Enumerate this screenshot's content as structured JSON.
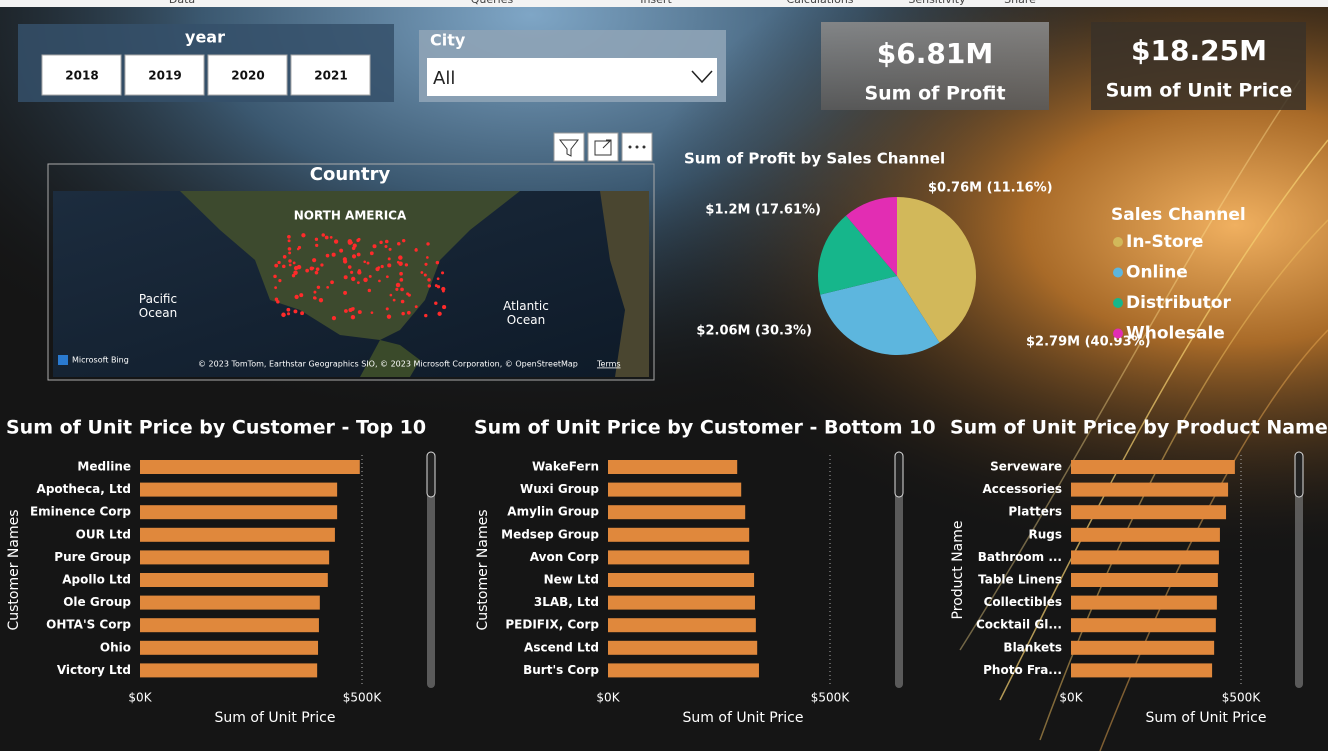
{
  "ribbon": {
    "tabs": [
      "Data",
      "Queries",
      "Insert",
      "Calculations",
      "Sensitivity",
      "Share"
    ]
  },
  "year_slicer": {
    "title": "year",
    "options": [
      "2018",
      "2019",
      "2020",
      "2021"
    ]
  },
  "city_slicer": {
    "title": "City",
    "selected": "All"
  },
  "cards": [
    {
      "value": "$6.81M",
      "label": "Sum of Profit"
    },
    {
      "value": "$18.25M",
      "label": "Sum of Unit Price"
    }
  ],
  "map": {
    "title": "Country",
    "labels": [
      "NORTH AMERICA",
      "Pacific Ocean",
      "Atlantic Ocean"
    ],
    "logo": "Microsoft Bing",
    "attribution": "© 2023 TomTom, Earthstar Geographics SIO, © 2023 Microsoft Corporation, © OpenStreetMap",
    "terms": "Terms"
  },
  "chart_data": [
    {
      "type": "pie",
      "title": "Sum of Profit by Sales Channel",
      "legend_title": "Sales Channel",
      "categories": [
        "In-Store",
        "Online",
        "Distributor",
        "Wholesale"
      ],
      "values": [
        2.79,
        2.06,
        1.2,
        0.76
      ],
      "value_labels": [
        "$2.79M (40.93%)",
        "$2.06M (30.3%)",
        "$1.2M (17.61%)",
        "$0.76M (11.16%)"
      ],
      "colors": [
        "#d2b85a",
        "#5db6de",
        "#16b68b",
        "#e22db3"
      ],
      "legend": "right"
    },
    {
      "type": "hbar",
      "title": "Sum of Unit Price by Customer - Top 10",
      "xlabel": "Sum of Unit Price",
      "ylabel": "Customer Names",
      "categories": [
        "Medline",
        "Apotheca, Ltd",
        "Eminence Corp",
        "OUR Ltd",
        "Pure Group",
        "Apollo Ltd",
        "Ole Group",
        "OHTA'S Corp",
        "Ohio",
        "Victory Ltd"
      ],
      "values": [
        495000,
        444000,
        444000,
        439000,
        426000,
        423000,
        405000,
        403000,
        401000,
        399000
      ],
      "color": "#e0883c",
      "xlim": [
        0,
        640000
      ],
      "xticks": [
        {
          "value": 0,
          "label": "$0K"
        },
        {
          "value": 500000,
          "label": "$500K"
        }
      ]
    },
    {
      "type": "hbar",
      "title": "Sum of Unit Price by Customer - Bottom 10",
      "xlabel": "Sum of Unit Price",
      "ylabel": "Customer Names",
      "categories": [
        "WakeFern",
        "Wuxi Group",
        "Amylin Group",
        "Medsep Group",
        "Avon Corp",
        "New Ltd",
        "3LAB, Ltd",
        "PEDIFIX, Corp",
        "Ascend Ltd",
        "Burt's Corp"
      ],
      "values": [
        291000,
        300000,
        309000,
        318000,
        318000,
        329000,
        331000,
        333000,
        336000,
        340000
      ],
      "color": "#e0883c",
      "xlim": [
        0,
        640000
      ],
      "xticks": [
        {
          "value": 0,
          "label": "$0K"
        },
        {
          "value": 500000,
          "label": "$500K"
        }
      ]
    },
    {
      "type": "hbar",
      "title": "Sum of Unit Price by Product Name",
      "xlabel": "Sum of Unit Price",
      "ylabel": "Product Name",
      "categories": [
        "Serveware",
        "Accessories",
        "Platters",
        "Rugs",
        "Bathroom ...",
        "Table Linens",
        "Collectibles",
        "Cocktail Gl...",
        "Blankets",
        "Photo Fra..."
      ],
      "values": [
        482000,
        462000,
        456000,
        438000,
        435000,
        432000,
        429000,
        426000,
        421000,
        415000
      ],
      "color": "#e0883c",
      "xlim": [
        0,
        640000
      ],
      "xticks": [
        {
          "value": 0,
          "label": "$0K"
        },
        {
          "value": 500000,
          "label": "$500K"
        }
      ]
    }
  ]
}
